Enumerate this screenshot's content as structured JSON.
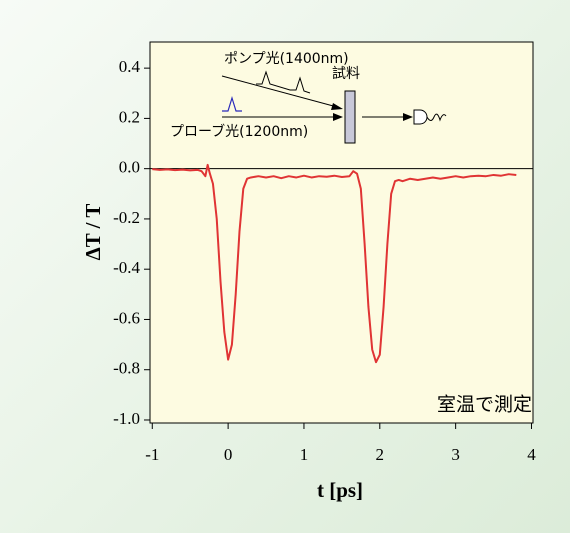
{
  "chart_data": {
    "type": "line",
    "xlabel": "t  [ps]",
    "ylabel": "ΔT / T",
    "annotation": "室温で測定",
    "inset_labels": {
      "pump": "ポンプ光(1400nm)",
      "sample": "試料",
      "probe": "プローブ光(1200nm)"
    },
    "xlim": [
      -1.03,
      4.02
    ],
    "ylim": [
      -1.012,
      0.504
    ],
    "xticks": [
      -1,
      0,
      1,
      2,
      3,
      4
    ],
    "yticks": [
      0.4,
      0.2,
      {
        "value": 0,
        "label": "0.0"
      },
      -0.2,
      -0.4,
      -0.6,
      -0.8,
      {
        "value": -1,
        "label": "-1.0"
      }
    ],
    "zero_line": true,
    "x": [
      -1.0,
      -0.9,
      -0.8,
      -0.7,
      -0.6,
      -0.5,
      -0.4,
      -0.35,
      -0.3,
      -0.27,
      -0.24,
      -0.2,
      -0.15,
      -0.1,
      -0.05,
      0.0,
      0.05,
      0.1,
      0.15,
      0.2,
      0.25,
      0.3,
      0.4,
      0.5,
      0.6,
      0.7,
      0.8,
      0.9,
      1.0,
      1.1,
      1.2,
      1.3,
      1.4,
      1.5,
      1.6,
      1.65,
      1.7,
      1.75,
      1.8,
      1.85,
      1.9,
      1.95,
      2.0,
      2.05,
      2.1,
      2.15,
      2.2,
      2.25,
      2.3,
      2.4,
      2.5,
      2.6,
      2.7,
      2.8,
      2.9,
      3.0,
      3.1,
      3.2,
      3.3,
      3.4,
      3.5,
      3.6,
      3.7,
      3.8
    ],
    "series": [
      {
        "color": "#e03434",
        "values": [
          -0.002,
          -0.005,
          -0.003,
          -0.006,
          -0.004,
          -0.007,
          -0.005,
          -0.01,
          -0.03,
          0.015,
          -0.02,
          -0.06,
          -0.2,
          -0.45,
          -0.65,
          -0.76,
          -0.7,
          -0.5,
          -0.25,
          -0.08,
          -0.04,
          -0.035,
          -0.03,
          -0.035,
          -0.03,
          -0.038,
          -0.03,
          -0.035,
          -0.028,
          -0.035,
          -0.03,
          -0.032,
          -0.028,
          -0.033,
          -0.03,
          -0.01,
          -0.02,
          -0.08,
          -0.3,
          -0.55,
          -0.72,
          -0.77,
          -0.74,
          -0.55,
          -0.3,
          -0.1,
          -0.05,
          -0.045,
          -0.05,
          -0.04,
          -0.045,
          -0.04,
          -0.035,
          -0.04,
          -0.035,
          -0.03,
          -0.035,
          -0.03,
          -0.028,
          -0.03,
          -0.025,
          -0.028,
          -0.022,
          -0.025
        ]
      }
    ]
  }
}
